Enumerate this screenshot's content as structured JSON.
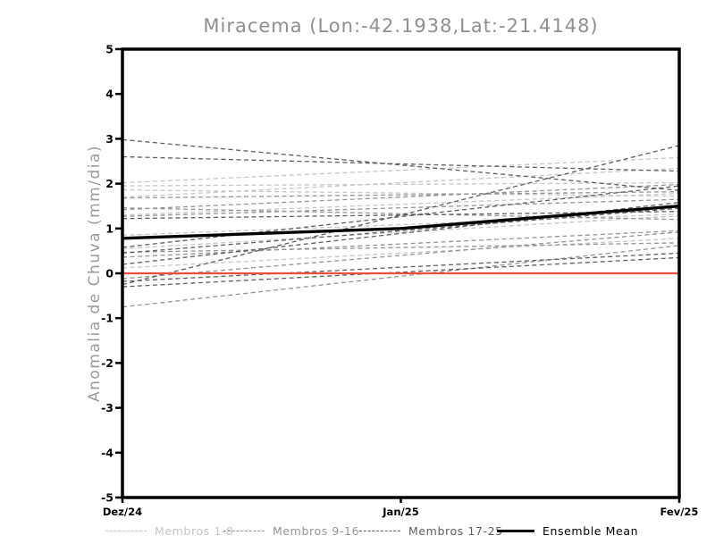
{
  "title": "Miracema (Lon:-42.1938,Lat:-21.4148)",
  "chart_data": {
    "type": "line",
    "title": "Miracema (Lon:-42.1938,Lat:-21.4148)",
    "xlabel": "",
    "ylabel": "Anomalia de Chuva (mm/dia)",
    "x_categories": [
      "Dez/24",
      "Jan/25",
      "Fev/25"
    ],
    "ylim": [
      -5,
      5
    ],
    "yticks": [
      "5",
      "4",
      "3",
      "2",
      "1",
      "0",
      "-1",
      "-2",
      "-3",
      "-4",
      "-5"
    ],
    "grid": false,
    "legend_position": "bottom",
    "zero_line": {
      "value": 0,
      "color": "#f04a45"
    },
    "members_x": [
      "Dez/24",
      "Fev/25"
    ],
    "groups": [
      {
        "name": "Membros 1-8",
        "color": "#c6c6c6",
        "line_style": "dashed",
        "members": [
          [
            2.02,
            2.58
          ],
          [
            1.86,
            1.72
          ],
          [
            0.85,
            1.32
          ],
          [
            0.55,
            1.28
          ],
          [
            0.12,
            0.78
          ],
          [
            1.7,
            2.34
          ],
          [
            1.3,
            1.78
          ],
          [
            1.95,
            2.02
          ]
        ]
      },
      {
        "name": "Membros 9-16",
        "color": "#949494",
        "line_style": "dashed",
        "members": [
          [
            1.68,
            1.82
          ],
          [
            1.46,
            1.2
          ],
          [
            1.27,
            1.65
          ],
          [
            0.36,
            0.95
          ],
          [
            -0.75,
            0.62
          ],
          [
            0.47,
            0.68
          ],
          [
            1.42,
            1.98
          ],
          [
            -0.12,
            0.92
          ]
        ]
      },
      {
        "name": "Membros 17-25",
        "color": "#5e5e5e",
        "line_style": "dashed",
        "members": [
          [
            2.98,
            1.85
          ],
          [
            2.6,
            2.28
          ],
          [
            -0.25,
            2.85
          ],
          [
            0.58,
            1.95
          ],
          [
            0.2,
            1.58
          ],
          [
            -0.18,
            0.45
          ],
          [
            0.45,
            1.45
          ],
          [
            1.22,
            1.38
          ],
          [
            -0.3,
            0.35
          ]
        ]
      }
    ],
    "ensemble_mean": {
      "name": "Ensemble Mean",
      "color": "#000000",
      "line_style": "solid",
      "x": [
        "Dez/24",
        "Jan/25",
        "Fev/25"
      ],
      "values": [
        0.78,
        1.0,
        1.5
      ]
    }
  },
  "legend": {
    "items": [
      {
        "label": "Membros 1-8",
        "color": "#c6c6c6",
        "style": "dashed"
      },
      {
        "label": "Membros 9-16",
        "color": "#949494",
        "style": "dashed"
      },
      {
        "label": "Membros 17-25",
        "color": "#5e5e5e",
        "style": "dashed"
      },
      {
        "label": "Ensemble Mean",
        "color": "#000000",
        "style": "solid"
      }
    ]
  },
  "colors": {
    "background": "#ffffff",
    "axis_frame": "#000000",
    "title_text": "#8f8f8f",
    "ylabel_text": "#9a9a9a",
    "tick_text": "#000000",
    "zero_line": "#f04a45"
  }
}
